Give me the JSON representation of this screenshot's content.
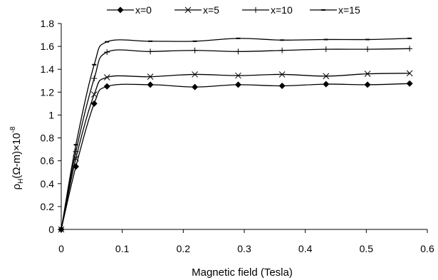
{
  "chart_data": {
    "type": "line",
    "title": "",
    "xlabel": "Magnetic field (Tesla)",
    "ylabel": {
      "base": "ρ",
      "sub": "H",
      "mid": "(Ω-m)×10",
      "sup": "-8"
    },
    "xlim": [
      0,
      0.6
    ],
    "ylim": [
      0,
      1.8
    ],
    "x_ticks": [
      0,
      0.1,
      0.2,
      0.3,
      0.4,
      0.5,
      0.6
    ],
    "x_tick_labels": [
      "0",
      "0.1",
      "0.2",
      "0.3",
      "0.4",
      "0.5",
      "0.6"
    ],
    "y_ticks": [
      0,
      0.2,
      0.4,
      0.6,
      0.8,
      1.0,
      1.2,
      1.4,
      1.6,
      1.8
    ],
    "y_tick_labels": [
      "0",
      "0.2",
      "0.4",
      "0.6",
      "0.8",
      "1",
      "1.2",
      "1.4",
      "1.6",
      "1.8"
    ],
    "grid": false,
    "legend_position": "top",
    "series": [
      {
        "name": "x=0",
        "marker": "diamond",
        "x": [
          0,
          0.024,
          0.054,
          0.075,
          0.146,
          0.219,
          0.29,
          0.362,
          0.434,
          0.502,
          0.571
        ],
        "y": [
          0,
          0.55,
          1.1,
          1.25,
          1.265,
          1.245,
          1.265,
          1.255,
          1.27,
          1.265,
          1.275
        ]
      },
      {
        "name": "x=5",
        "marker": "x",
        "x": [
          0,
          0.024,
          0.054,
          0.075,
          0.146,
          0.219,
          0.29,
          0.362,
          0.434,
          0.502,
          0.571
        ],
        "y": [
          0,
          0.62,
          1.18,
          1.33,
          1.335,
          1.355,
          1.345,
          1.355,
          1.34,
          1.36,
          1.365
        ]
      },
      {
        "name": "x=10",
        "marker": "plus",
        "x": [
          0,
          0.024,
          0.054,
          0.075,
          0.146,
          0.219,
          0.29,
          0.362,
          0.434,
          0.502,
          0.571
        ],
        "y": [
          0,
          0.68,
          1.32,
          1.55,
          1.555,
          1.565,
          1.555,
          1.565,
          1.575,
          1.575,
          1.58
        ]
      },
      {
        "name": "x=15",
        "marker": "dash",
        "x": [
          0,
          0.024,
          0.054,
          0.075,
          0.146,
          0.219,
          0.29,
          0.362,
          0.434,
          0.502,
          0.571
        ],
        "y": [
          0,
          0.74,
          1.44,
          1.64,
          1.645,
          1.645,
          1.67,
          1.655,
          1.66,
          1.66,
          1.67
        ]
      }
    ]
  }
}
